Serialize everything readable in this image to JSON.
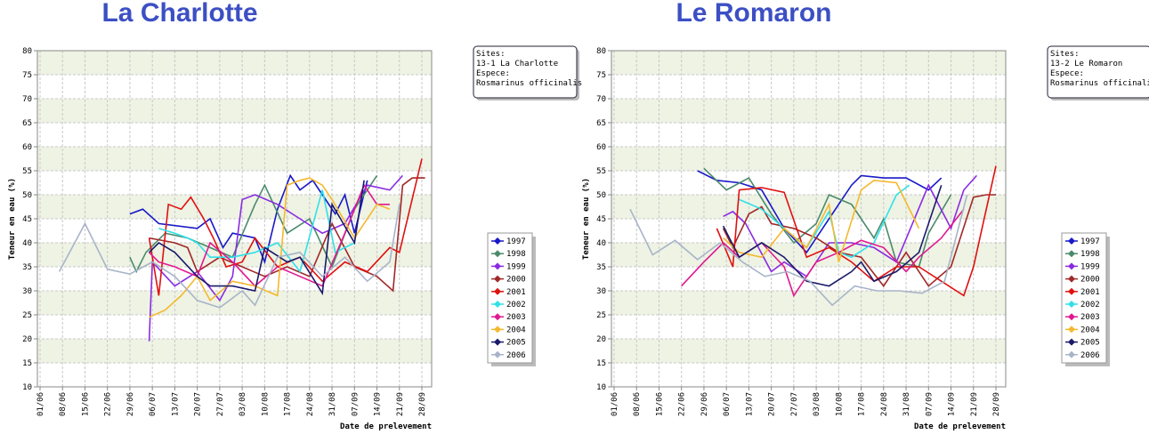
{
  "chart_data": [
    {
      "type": "line",
      "title": "La Charlotte",
      "xlabel": "Date de prelevement",
      "ylabel": "Teneur en eau (%)",
      "info": [
        "Sites:",
        "13-1 La Charlotte",
        "Espece:",
        "Rosmarinus officinalis"
      ],
      "xlim": [
        "01/06",
        "28/09"
      ],
      "xticks": [
        "01/06",
        "08/06",
        "15/06",
        "22/06",
        "29/06",
        "06/07",
        "13/07",
        "20/07",
        "27/07",
        "03/08",
        "10/08",
        "17/08",
        "24/08",
        "31/08",
        "07/09",
        "14/09",
        "21/09",
        "28/09"
      ],
      "ylim": [
        10,
        80
      ],
      "yticks": [
        10,
        15,
        20,
        25,
        30,
        35,
        40,
        45,
        50,
        55,
        60,
        65,
        70,
        75,
        80
      ],
      "grid": true,
      "series": [
        {
          "name": "1997",
          "color": "#1818c8",
          "x": [
            "29/06",
            "03/07",
            "08/07",
            "20/07",
            "24/07",
            "28/07",
            "31/07",
            "07/08",
            "10/08",
            "14/08",
            "18/08",
            "21/08",
            "25/08",
            "28/08",
            "01/09",
            "04/09",
            "07/09",
            "11/09"
          ],
          "values": [
            46,
            47,
            44,
            43,
            45,
            39,
            42,
            41,
            36,
            47,
            54,
            51,
            53,
            50,
            46,
            50,
            42,
            53
          ]
        },
        {
          "name": "1998",
          "color": "#4a8a6a",
          "x": [
            "29/06",
            "01/07",
            "04/07",
            "10/07",
            "17/07",
            "24/07",
            "31/07",
            "07/08",
            "10/08",
            "17/08",
            "24/08",
            "31/08",
            "07/09",
            "14/09"
          ],
          "values": [
            37,
            34,
            38,
            42,
            41,
            39,
            37,
            48,
            52,
            42,
            45,
            35,
            47,
            54
          ]
        },
        {
          "name": "1999",
          "color": "#8a2be2",
          "x": [
            "05/07",
            "06/07",
            "13/07",
            "20/07",
            "27/07",
            "31/07",
            "03/08",
            "07/08",
            "14/08",
            "21/08",
            "28/08",
            "04/09",
            "11/09",
            "18/09",
            "22/09"
          ],
          "values": [
            19.5,
            36,
            31,
            34,
            28,
            33,
            49,
            50,
            48,
            45,
            42,
            44,
            52,
            51,
            54
          ]
        },
        {
          "name": "2000",
          "color": "#a02828",
          "x": [
            "05/07",
            "13/07",
            "17/07",
            "20/07",
            "27/07",
            "03/08",
            "10/08",
            "17/08",
            "24/08",
            "31/08",
            "07/09",
            "14/09",
            "19/09",
            "22/09",
            "25/09",
            "29/09"
          ],
          "values": [
            41,
            40,
            39,
            34,
            37,
            35,
            33,
            35,
            33,
            44,
            35,
            33,
            30,
            52,
            53.5,
            53.5
          ]
        },
        {
          "name": "2001",
          "color": "#e01010",
          "x": [
            "05/07",
            "08/07",
            "11/07",
            "15/07",
            "18/07",
            "22/07",
            "25/07",
            "29/07",
            "03/08",
            "07/08",
            "14/08",
            "21/08",
            "28/08",
            "04/09",
            "11/09",
            "18/09",
            "21/09",
            "28/09"
          ],
          "values": [
            41,
            29,
            48,
            47,
            49.5,
            45,
            41,
            35,
            36,
            41,
            35,
            37,
            32,
            36,
            34,
            39,
            38,
            57.5
          ]
        },
        {
          "name": "2002",
          "color": "#30e0e8",
          "x": [
            "08/07",
            "13/07",
            "17/07",
            "20/07",
            "24/07",
            "31/07",
            "07/08",
            "14/08",
            "21/08",
            "28/08",
            "01/09",
            "07/09"
          ],
          "values": [
            43,
            42,
            41,
            40,
            37,
            37,
            38,
            40,
            34,
            51,
            38,
            40
          ]
        },
        {
          "name": "2003",
          "color": "#e01890",
          "x": [
            "05/07",
            "08/07",
            "13/07",
            "20/07",
            "24/07",
            "31/07",
            "07/08",
            "14/08",
            "21/08",
            "28/08",
            "04/09",
            "10/09",
            "14/09",
            "18/09"
          ],
          "values": [
            38,
            36,
            35,
            33,
            40,
            36,
            31,
            35,
            33,
            31,
            42,
            52,
            48,
            48
          ]
        },
        {
          "name": "2004",
          "color": "#f5b82e",
          "x": [
            "05/07",
            "10/07",
            "15/07",
            "20/07",
            "24/07",
            "31/07",
            "07/08",
            "14/08",
            "17/08",
            "21/08",
            "24/08",
            "28/08",
            "31/08",
            "07/09",
            "14/09",
            "18/09"
          ],
          "values": [
            24.5,
            26,
            29,
            33,
            28,
            32,
            31,
            29,
            52,
            53,
            53.5,
            52,
            49,
            41,
            48,
            47
          ]
        },
        {
          "name": "2005",
          "color": "#1a1a6a",
          "x": [
            "05/07",
            "08/07",
            "13/07",
            "20/07",
            "24/07",
            "31/07",
            "07/08",
            "10/08",
            "17/08",
            "21/08",
            "28/08",
            "31/08",
            "07/09",
            "10/09"
          ],
          "values": [
            38,
            40,
            38,
            33,
            31,
            31,
            30,
            39,
            36,
            37,
            29.5,
            48,
            40,
            53
          ]
        },
        {
          "name": "2006",
          "color": "#a8b4c8",
          "x": [
            "07/06",
            "15/06",
            "22/06",
            "29/06",
            "06/07",
            "13/07",
            "20/07",
            "27/07",
            "03/08",
            "07/08",
            "14/08",
            "21/08",
            "28/08",
            "04/09",
            "11/09",
            "18/09",
            "21/09"
          ],
          "values": [
            34,
            44,
            34.5,
            33.5,
            36,
            33,
            28,
            26.5,
            30,
            27,
            37,
            38,
            33,
            37,
            32,
            36,
            48
          ]
        }
      ]
    },
    {
      "type": "line",
      "title": "Le Romaron",
      "xlabel": "Date de prelevement",
      "ylabel": "Teneur en eau (%)",
      "info": [
        "Sites:",
        "13-2 Le Romaron",
        "Espece:",
        "Rosmarinus officinalis"
      ],
      "xlim": [
        "01/06",
        "28/09"
      ],
      "xticks": [
        "01/06",
        "08/06",
        "15/06",
        "22/06",
        "29/06",
        "06/07",
        "13/07",
        "20/07",
        "27/07",
        "03/08",
        "10/08",
        "17/08",
        "24/08",
        "31/08",
        "07/09",
        "14/09",
        "21/09",
        "28/09"
      ],
      "ylim": [
        10,
        80
      ],
      "yticks": [
        10,
        15,
        20,
        25,
        30,
        35,
        40,
        45,
        50,
        55,
        60,
        65,
        70,
        75,
        80
      ],
      "grid": true,
      "series": [
        {
          "name": "1997",
          "color": "#1818c8",
          "x": [
            "27/06",
            "03/07",
            "10/07",
            "17/07",
            "24/07",
            "31/07",
            "07/08",
            "14/08",
            "17/08",
            "24/08",
            "31/08",
            "07/09",
            "11/09"
          ],
          "values": [
            55,
            53,
            52.5,
            51,
            43,
            38,
            45,
            52,
            54,
            53.5,
            53.5,
            51,
            53.5
          ]
        },
        {
          "name": "1998",
          "color": "#4a8a6a",
          "x": [
            "29/06",
            "06/07",
            "13/07",
            "20/07",
            "27/07",
            "03/08",
            "07/08",
            "14/08",
            "21/08",
            "24/08",
            "28/08",
            "04/09",
            "07/09",
            "14/09"
          ],
          "values": [
            55.5,
            51,
            53.5,
            46,
            40,
            44,
            50,
            48,
            41,
            45,
            36,
            35,
            42,
            50
          ]
        },
        {
          "name": "1999",
          "color": "#8a2be2",
          "x": [
            "05/07",
            "08/07",
            "12/07",
            "20/07",
            "24/07",
            "31/07",
            "07/08",
            "14/08",
            "21/08",
            "28/08",
            "07/09",
            "14/09",
            "18/09",
            "22/09"
          ],
          "values": [
            45.5,
            46.5,
            44,
            34,
            36,
            33,
            40,
            40,
            39,
            36,
            52,
            43,
            51,
            54
          ]
        },
        {
          "name": "2000",
          "color": "#a02828",
          "x": [
            "05/07",
            "08/07",
            "13/07",
            "17/07",
            "20/07",
            "27/07",
            "03/08",
            "10/08",
            "17/08",
            "24/08",
            "31/08",
            "07/09",
            "14/09",
            "21/09",
            "25/09",
            "28/09"
          ],
          "values": [
            43,
            39,
            46,
            47.5,
            44,
            43,
            41,
            38,
            37,
            31,
            38,
            31,
            35,
            49.5,
            50,
            50
          ]
        },
        {
          "name": "2001",
          "color": "#e01010",
          "x": [
            "03/07",
            "08/07",
            "10/07",
            "17/07",
            "24/07",
            "31/07",
            "07/08",
            "14/08",
            "21/08",
            "28/08",
            "04/09",
            "11/09",
            "18/09",
            "21/09",
            "28/09"
          ],
          "values": [
            43,
            35,
            51,
            51.5,
            50.5,
            37,
            39,
            36,
            32,
            35,
            35,
            32,
            29,
            35,
            56
          ]
        },
        {
          "name": "2002",
          "color": "#30e0e8",
          "x": [
            "10/07",
            "17/07",
            "24/07",
            "31/07",
            "07/08",
            "10/08",
            "14/08",
            "21/08",
            "28/08",
            "01/09"
          ],
          "values": [
            49,
            47,
            43,
            39,
            46.5,
            38,
            37,
            40,
            50,
            52
          ]
        },
        {
          "name": "2003",
          "color": "#e01890",
          "x": [
            "22/06",
            "29/06",
            "05/07",
            "10/07",
            "17/07",
            "24/07",
            "27/07",
            "03/08",
            "10/08",
            "17/08",
            "24/08",
            "31/08",
            "04/09",
            "11/09",
            "18/09"
          ],
          "values": [
            31,
            36,
            40,
            37,
            40,
            35,
            29,
            36,
            38,
            40.5,
            39,
            34,
            37,
            41,
            47
          ]
        },
        {
          "name": "2004",
          "color": "#f5b82e",
          "x": [
            "05/07",
            "10/07",
            "17/07",
            "24/07",
            "31/07",
            "07/08",
            "10/08",
            "17/08",
            "21/08",
            "28/08",
            "04/09"
          ],
          "values": [
            41,
            38,
            37,
            43,
            39,
            48,
            36,
            51,
            53,
            52.5,
            43
          ]
        },
        {
          "name": "2005",
          "color": "#1a1a6a",
          "x": [
            "05/07",
            "10/07",
            "17/07",
            "24/07",
            "31/07",
            "07/08",
            "14/08",
            "17/08",
            "21/08",
            "28/08",
            "04/09",
            "11/09"
          ],
          "values": [
            43.5,
            37,
            40,
            37,
            32,
            31,
            34,
            36,
            32,
            34,
            38,
            52
          ]
        },
        {
          "name": "2006",
          "color": "#a8b4c8",
          "x": [
            "06/06",
            "13/06",
            "20/06",
            "27/06",
            "04/07",
            "11/07",
            "18/07",
            "25/07",
            "01/08",
            "08/08",
            "15/08",
            "22/08",
            "29/08",
            "05/09",
            "12/09",
            "19/09"
          ],
          "values": [
            47,
            37.5,
            40.5,
            36.5,
            40,
            36,
            33,
            34,
            32,
            27,
            31,
            30,
            30,
            29.5,
            32,
            50
          ]
        }
      ]
    }
  ]
}
